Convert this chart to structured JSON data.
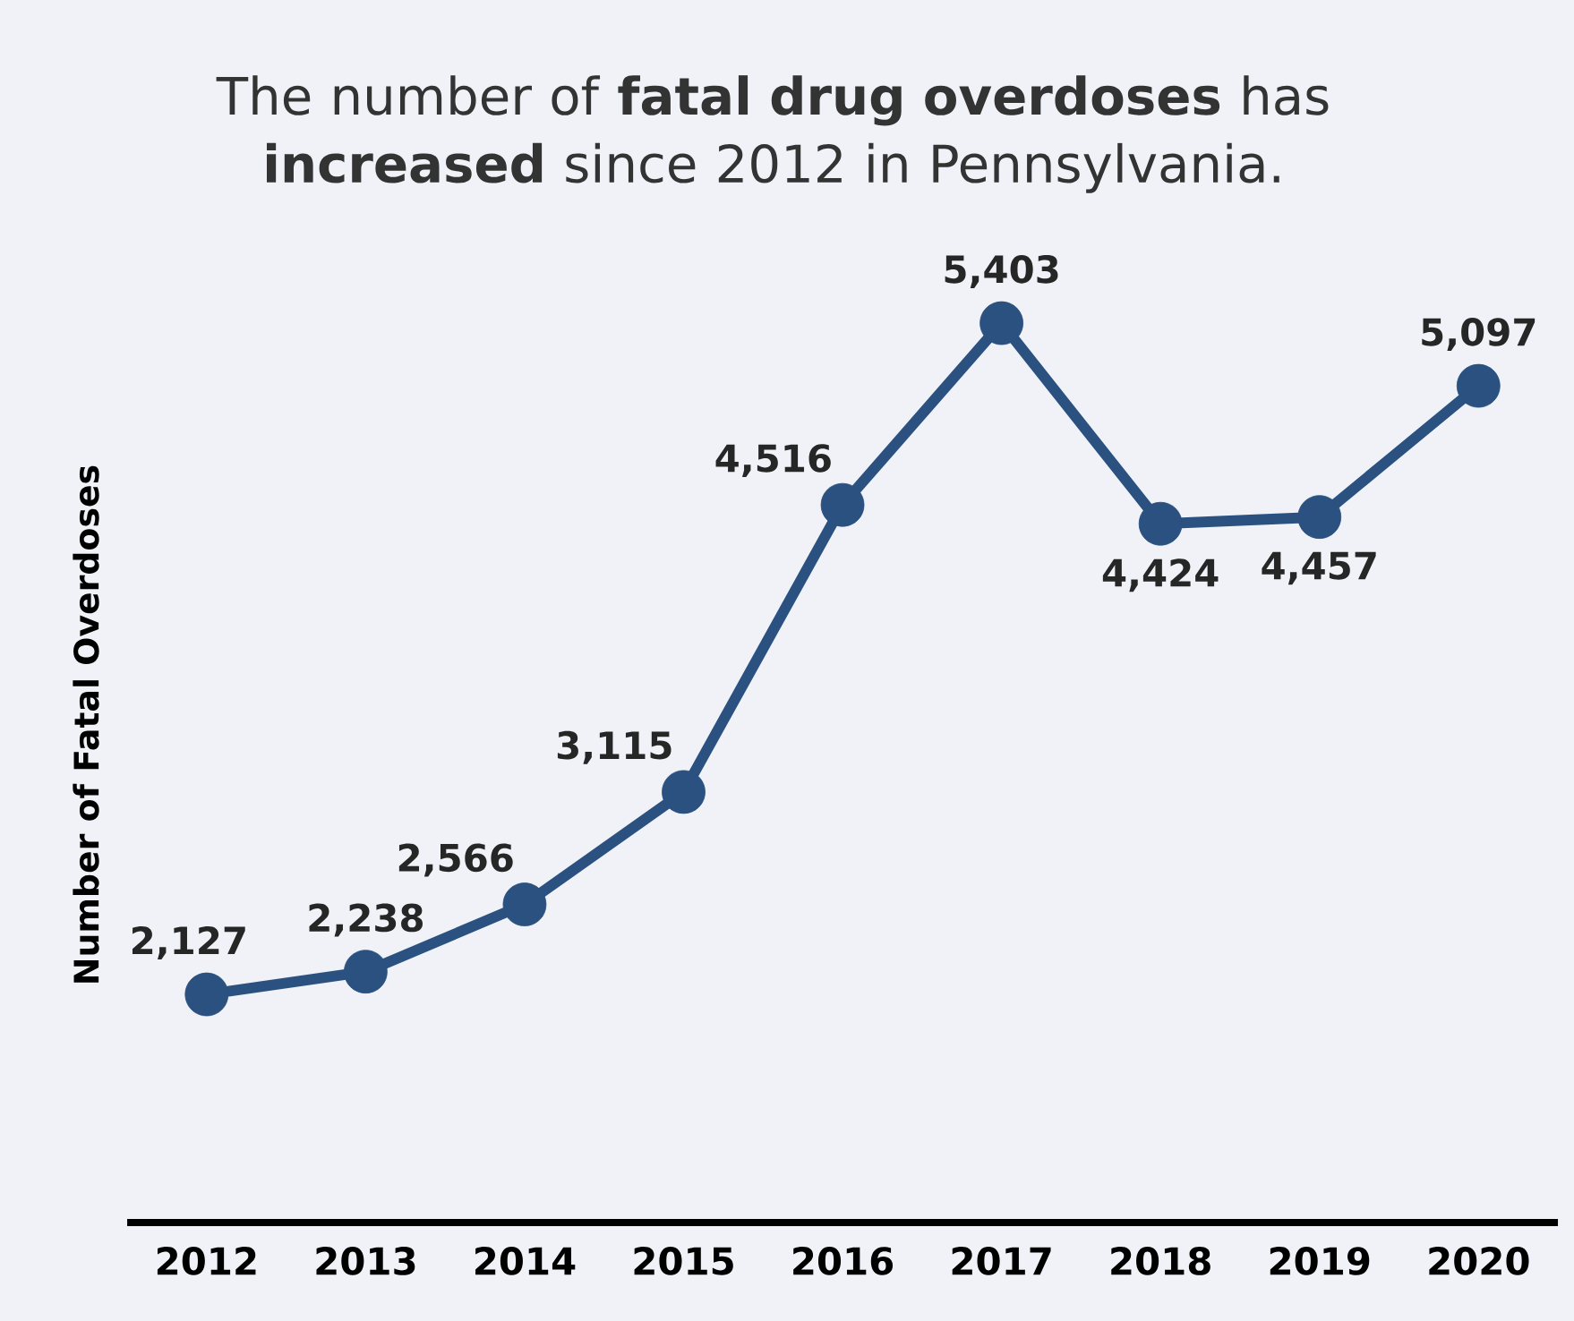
{
  "chart_data": {
    "type": "line",
    "title": "The number of **fatal drug overdoses** has **increased** since 2012 in Pennsylvania.",
    "ylabel": "Number of Fatal Overdoses",
    "categories": [
      "2012",
      "2013",
      "2014",
      "2015",
      "2016",
      "2017",
      "2018",
      "2019",
      "2020"
    ],
    "values": [
      2127,
      2238,
      2566,
      3115,
      4516,
      5403,
      4424,
      4457,
      5097
    ],
    "value_labels": [
      "2,127",
      "2,238",
      "2,566",
      "3,115",
      "4,516",
      "5,403",
      "4,424",
      "4,457",
      "5,097"
    ],
    "color": "#2a5180",
    "marker": "circle",
    "line_style": "solid"
  }
}
